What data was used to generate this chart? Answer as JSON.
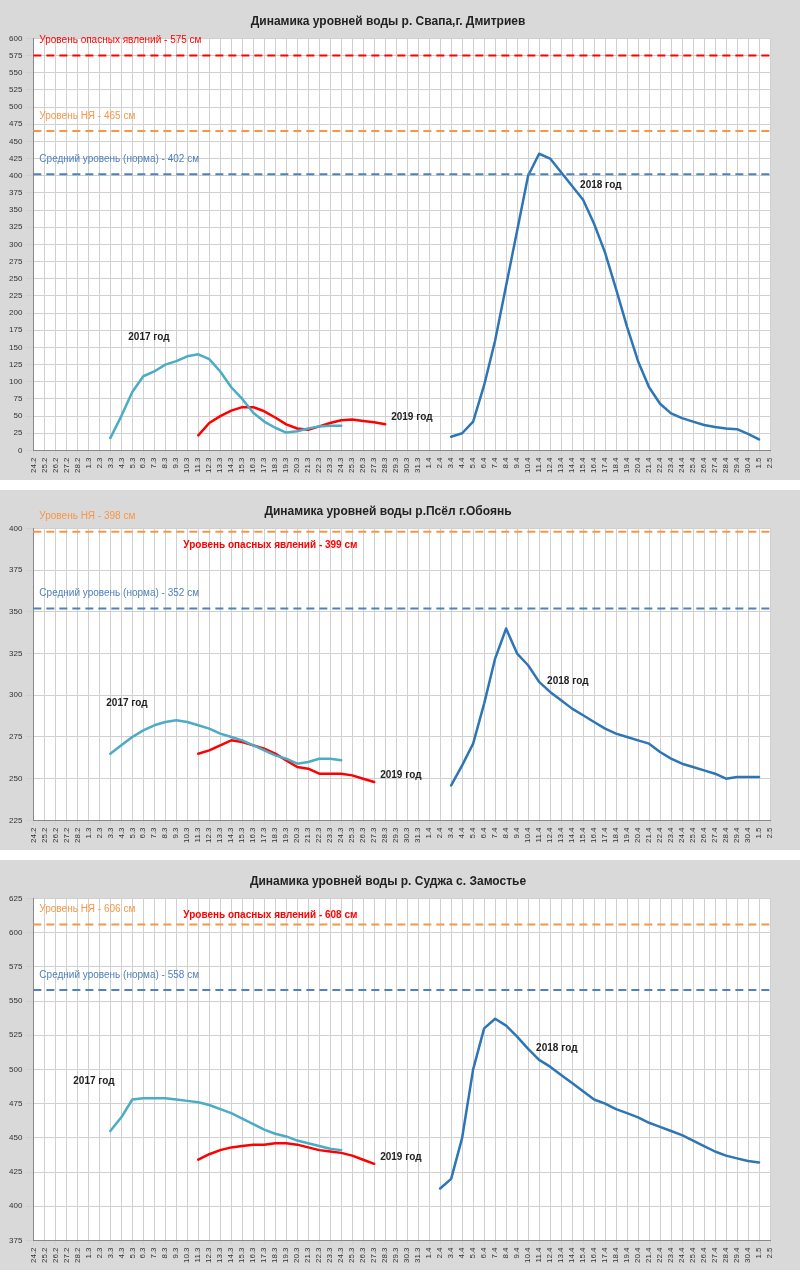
{
  "chart_data": [
    {
      "type": "line",
      "title": "Динамика уровней воды р. Свапа,г. Дмитриев",
      "marker": "none",
      "grid": true,
      "categories": [
        "24.2",
        "25.2",
        "26.2",
        "27.2",
        "28.2",
        "1.3",
        "2.3",
        "3.3",
        "4.3",
        "5.3",
        "6.3",
        "7.3",
        "8.3",
        "9.3",
        "10.3",
        "11.3",
        "12.3",
        "13.3",
        "14.3",
        "15.3",
        "16.3",
        "17.3",
        "18.3",
        "19.3",
        "20.3",
        "21.3",
        "22.3",
        "23.3",
        "24.3",
        "25.3",
        "26.3",
        "27.3",
        "28.3",
        "29.3",
        "30.3",
        "31.3",
        "1.4",
        "2.4",
        "3.4",
        "4.4",
        "5.4",
        "6.4",
        "7.4",
        "8.4",
        "9.4",
        "10.4",
        "11.4",
        "12.4",
        "13.4",
        "14.4",
        "15.4",
        "16.4",
        "17.4",
        "18.4",
        "19.4",
        "20.4",
        "21.4",
        "22.4",
        "23.4",
        "24.4",
        "25.4",
        "26.4",
        "27.4",
        "28.4",
        "29.4",
        "30.4",
        "1.5",
        "2.5"
      ],
      "series": [
        {
          "name": "2017 год",
          "color": "#4bacc6",
          "values": [
            null,
            null,
            null,
            null,
            null,
            null,
            null,
            18,
            50,
            85,
            108,
            115,
            125,
            130,
            137,
            140,
            133,
            115,
            92,
            75,
            55,
            42,
            33,
            26,
            28,
            32,
            35,
            36,
            36,
            null,
            null,
            null,
            null,
            null,
            null,
            null,
            null,
            null,
            null,
            null,
            null,
            null,
            null,
            null,
            null,
            null,
            null,
            null,
            null,
            null,
            null,
            null,
            null,
            null,
            null,
            null,
            null,
            null,
            null,
            null,
            null,
            null,
            null,
            null,
            null,
            null,
            null,
            null
          ]
        },
        {
          "name": "2018 год",
          "color": "#2e75b6",
          "values": [
            null,
            null,
            null,
            null,
            null,
            null,
            null,
            null,
            null,
            null,
            null,
            null,
            null,
            null,
            null,
            null,
            null,
            null,
            null,
            null,
            null,
            null,
            null,
            null,
            null,
            null,
            null,
            null,
            null,
            null,
            null,
            null,
            null,
            null,
            null,
            null,
            null,
            null,
            20,
            25,
            42,
            95,
            160,
            240,
            320,
            400,
            432,
            425,
            405,
            385,
            365,
            330,
            288,
            235,
            180,
            130,
            92,
            68,
            54,
            47,
            42,
            37,
            34,
            32,
            31,
            24,
            16,
            null
          ]
        },
        {
          "name": "2019 год",
          "color": "#ff0000",
          "values": [
            null,
            null,
            null,
            null,
            null,
            null,
            null,
            null,
            null,
            null,
            null,
            null,
            null,
            null,
            null,
            22,
            40,
            50,
            58,
            63,
            63,
            57,
            48,
            38,
            32,
            30,
            35,
            40,
            44,
            45,
            43,
            41,
            38,
            null,
            null,
            null,
            null,
            null,
            null,
            null,
            null,
            null,
            null,
            null,
            null,
            null,
            null,
            null,
            null,
            null,
            null,
            null,
            null,
            null,
            null,
            null,
            null,
            null,
            null,
            null,
            null,
            null,
            null,
            null,
            null,
            null,
            null,
            null
          ]
        }
      ],
      "ylim": [
        0,
        600
      ],
      "yticks": [
        0,
        25,
        50,
        75,
        100,
        125,
        150,
        175,
        200,
        225,
        250,
        275,
        300,
        325,
        350,
        375,
        400,
        425,
        450,
        475,
        500,
        525,
        550,
        575,
        600
      ],
      "ref_lines": [
        {
          "axis": "y",
          "value": 575,
          "label": "Уровень опасных явлений - 575 см",
          "color": "#ff0000",
          "line_style": "dashed"
        },
        {
          "axis": "y",
          "value": 465,
          "label": "Уровень НЯ - 465 см",
          "color": "#f79646",
          "line_style": "dashed"
        },
        {
          "axis": "y",
          "value": 402,
          "label": "Средний уровень (норма) - 402 см",
          "color": "#4f81bd",
          "line_style": "dashed"
        }
      ]
    },
    {
      "type": "line",
      "title": "Динамика уровней воды р.Псёл г.Обоянь",
      "marker": "none",
      "grid": true,
      "categories": [
        "24.2",
        "25.2",
        "26.2",
        "27.2",
        "28.2",
        "1.3",
        "2.3",
        "3.3",
        "4.3",
        "5.3",
        "6.3",
        "7.3",
        "8.3",
        "9.3",
        "10.3",
        "11.3",
        "12.3",
        "13.3",
        "14.3",
        "15.3",
        "16.3",
        "17.3",
        "18.3",
        "19.3",
        "20.3",
        "21.3",
        "22.3",
        "23.3",
        "24.3",
        "25.3",
        "26.3",
        "27.3",
        "28.3",
        "29.3",
        "30.3",
        "31.3",
        "1.4",
        "2.4",
        "3.4",
        "4.4",
        "5.4",
        "6.4",
        "7.4",
        "8.4",
        "9.4",
        "10.4",
        "11.4",
        "12.4",
        "13.4",
        "14.4",
        "15.4",
        "16.4",
        "17.4",
        "18.4",
        "19.4",
        "20.4",
        "21.4",
        "22.4",
        "23.4",
        "24.4",
        "25.4",
        "26.4",
        "27.4",
        "28.4",
        "29.4",
        "30.4",
        "1.5",
        "2.5"
      ],
      "series": [
        {
          "name": "2017 год",
          "color": "#4bacc6",
          "values": [
            null,
            null,
            null,
            null,
            null,
            null,
            null,
            265,
            270,
            275,
            279,
            282,
            284,
            285,
            284,
            282,
            280,
            277,
            275,
            273,
            270,
            267,
            264,
            262,
            259,
            260,
            262,
            262,
            261,
            null,
            null,
            null,
            null,
            null,
            null,
            null,
            null,
            null,
            null,
            null,
            null,
            null,
            null,
            null,
            null,
            null,
            null,
            null,
            null,
            null,
            null,
            null,
            null,
            null,
            null,
            null,
            null,
            null,
            null,
            null,
            null,
            null,
            null,
            null,
            null,
            null,
            null,
            null
          ]
        },
        {
          "name": "2018 год",
          "color": "#2e75b6",
          "values": [
            null,
            null,
            null,
            null,
            null,
            null,
            null,
            null,
            null,
            null,
            null,
            null,
            null,
            null,
            null,
            null,
            null,
            null,
            null,
            null,
            null,
            null,
            null,
            null,
            null,
            null,
            null,
            null,
            null,
            null,
            null,
            null,
            null,
            null,
            null,
            null,
            null,
            null,
            246,
            258,
            271,
            295,
            322,
            340,
            325,
            318,
            308,
            302,
            297,
            292,
            288,
            284,
            280,
            277,
            275,
            273,
            271,
            266,
            262,
            259,
            257,
            255,
            253,
            250,
            251,
            251,
            251,
            null
          ]
        },
        {
          "name": "2019 год",
          "color": "#ff0000",
          "values": [
            null,
            null,
            null,
            null,
            null,
            null,
            null,
            null,
            null,
            null,
            null,
            null,
            null,
            null,
            null,
            265,
            267,
            270,
            273,
            272,
            270,
            268,
            265,
            261,
            257,
            256,
            253,
            253,
            253,
            252,
            250,
            248,
            null,
            null,
            null,
            null,
            null,
            null,
            null,
            null,
            null,
            null,
            null,
            null,
            null,
            null,
            null,
            null,
            null,
            null,
            null,
            null,
            null,
            null,
            null,
            null,
            null,
            null,
            null,
            null,
            null,
            null,
            null,
            null,
            null,
            null,
            null,
            null
          ]
        }
      ],
      "ylim": [
        225,
        400
      ],
      "yticks": [
        225,
        250,
        275,
        300,
        325,
        350,
        375,
        400
      ],
      "ref_lines": [
        {
          "axis": "y",
          "value": 398,
          "label": "Уровень НЯ - 398 см",
          "color": "#f79646",
          "line_style": "dashed"
        },
        {
          "axis": "y",
          "value": 352,
          "label": "Средний уровень (норма) - 352 см",
          "color": "#4f81bd",
          "line_style": "dashed"
        }
      ],
      "annotations": [
        "Уровень опасных явлений - 399 см"
      ]
    },
    {
      "type": "line",
      "title": "Динамика уровней воды р. Суджа с. Замостье",
      "marker": "none",
      "grid": true,
      "categories": [
        "24.2",
        "25.2",
        "26.2",
        "27.2",
        "28.2",
        "1.3",
        "2.3",
        "3.3",
        "4.3",
        "5.3",
        "6.3",
        "7.3",
        "8.3",
        "9.3",
        "10.3",
        "11.3",
        "12.3",
        "13.3",
        "14.3",
        "15.3",
        "16.3",
        "17.3",
        "18.3",
        "19.3",
        "20.3",
        "21.3",
        "22.3",
        "23.3",
        "24.3",
        "25.3",
        "26.3",
        "27.3",
        "28.3",
        "29.3",
        "30.3",
        "31.3",
        "1.4",
        "2.4",
        "3.4",
        "4.4",
        "5.4",
        "6.4",
        "7.4",
        "8.4",
        "9.4",
        "10.4",
        "11.4",
        "12.4",
        "13.4",
        "14.4",
        "15.4",
        "16.4",
        "17.4",
        "18.4",
        "19.4",
        "20.4",
        "21.4",
        "22.4",
        "23.4",
        "24.4",
        "25.4",
        "26.4",
        "27.4",
        "28.4",
        "29.4",
        "30.4",
        "1.5",
        "2.5"
      ],
      "series": [
        {
          "name": "2017 год",
          "color": "#4bacc6",
          "values": [
            null,
            null,
            null,
            null,
            null,
            null,
            null,
            455,
            465,
            478,
            479,
            479,
            479,
            478,
            477,
            476,
            474,
            471,
            468,
            464,
            460,
            456,
            453,
            451,
            448,
            446,
            444,
            442,
            441,
            null,
            null,
            null,
            null,
            null,
            null,
            null,
            null,
            null,
            null,
            null,
            null,
            null,
            null,
            null,
            null,
            null,
            null,
            null,
            null,
            null,
            null,
            null,
            null,
            null,
            null,
            null,
            null,
            null,
            null,
            null,
            null,
            null,
            null,
            null,
            null,
            null,
            null,
            null
          ]
        },
        {
          "name": "2018 год",
          "color": "#2e75b6",
          "values": [
            null,
            null,
            null,
            null,
            null,
            null,
            null,
            null,
            null,
            null,
            null,
            null,
            null,
            null,
            null,
            null,
            null,
            null,
            null,
            null,
            null,
            null,
            null,
            null,
            null,
            null,
            null,
            null,
            null,
            null,
            null,
            null,
            null,
            null,
            null,
            null,
            null,
            413,
            420,
            450,
            500,
            530,
            537,
            532,
            524,
            515,
            507,
            502,
            496,
            490,
            484,
            478,
            475,
            471,
            468,
            465,
            461,
            458,
            455,
            452,
            448,
            444,
            440,
            437,
            435,
            433,
            432,
            null
          ]
        },
        {
          "name": "2019 год",
          "color": "#ff0000",
          "values": [
            null,
            null,
            null,
            null,
            null,
            null,
            null,
            null,
            null,
            null,
            null,
            null,
            null,
            null,
            null,
            434,
            438,
            441,
            443,
            444,
            445,
            445,
            446,
            446,
            445,
            443,
            441,
            440,
            439,
            437,
            434,
            431,
            null,
            null,
            null,
            null,
            null,
            null,
            null,
            null,
            null,
            null,
            null,
            null,
            null,
            null,
            null,
            null,
            null,
            null,
            null,
            null,
            null,
            null,
            null,
            null,
            null,
            null,
            null,
            null,
            null,
            null,
            null,
            null,
            null,
            null,
            null,
            null
          ]
        }
      ],
      "ylim": [
        375,
        625
      ],
      "yticks": [
        375,
        400,
        425,
        450,
        475,
        500,
        525,
        550,
        575,
        600,
        625
      ],
      "ref_lines": [
        {
          "axis": "y",
          "value": 606,
          "label": "Уровень НЯ - 606 см",
          "color": "#f79646",
          "line_style": "dashed"
        },
        {
          "axis": "y",
          "value": 558,
          "label": "Средний уровень (норма) - 558 см",
          "color": "#4f81bd",
          "line_style": "dashed"
        }
      ],
      "annotations": [
        "Уровень опасных явлений - 608 см"
      ]
    }
  ]
}
